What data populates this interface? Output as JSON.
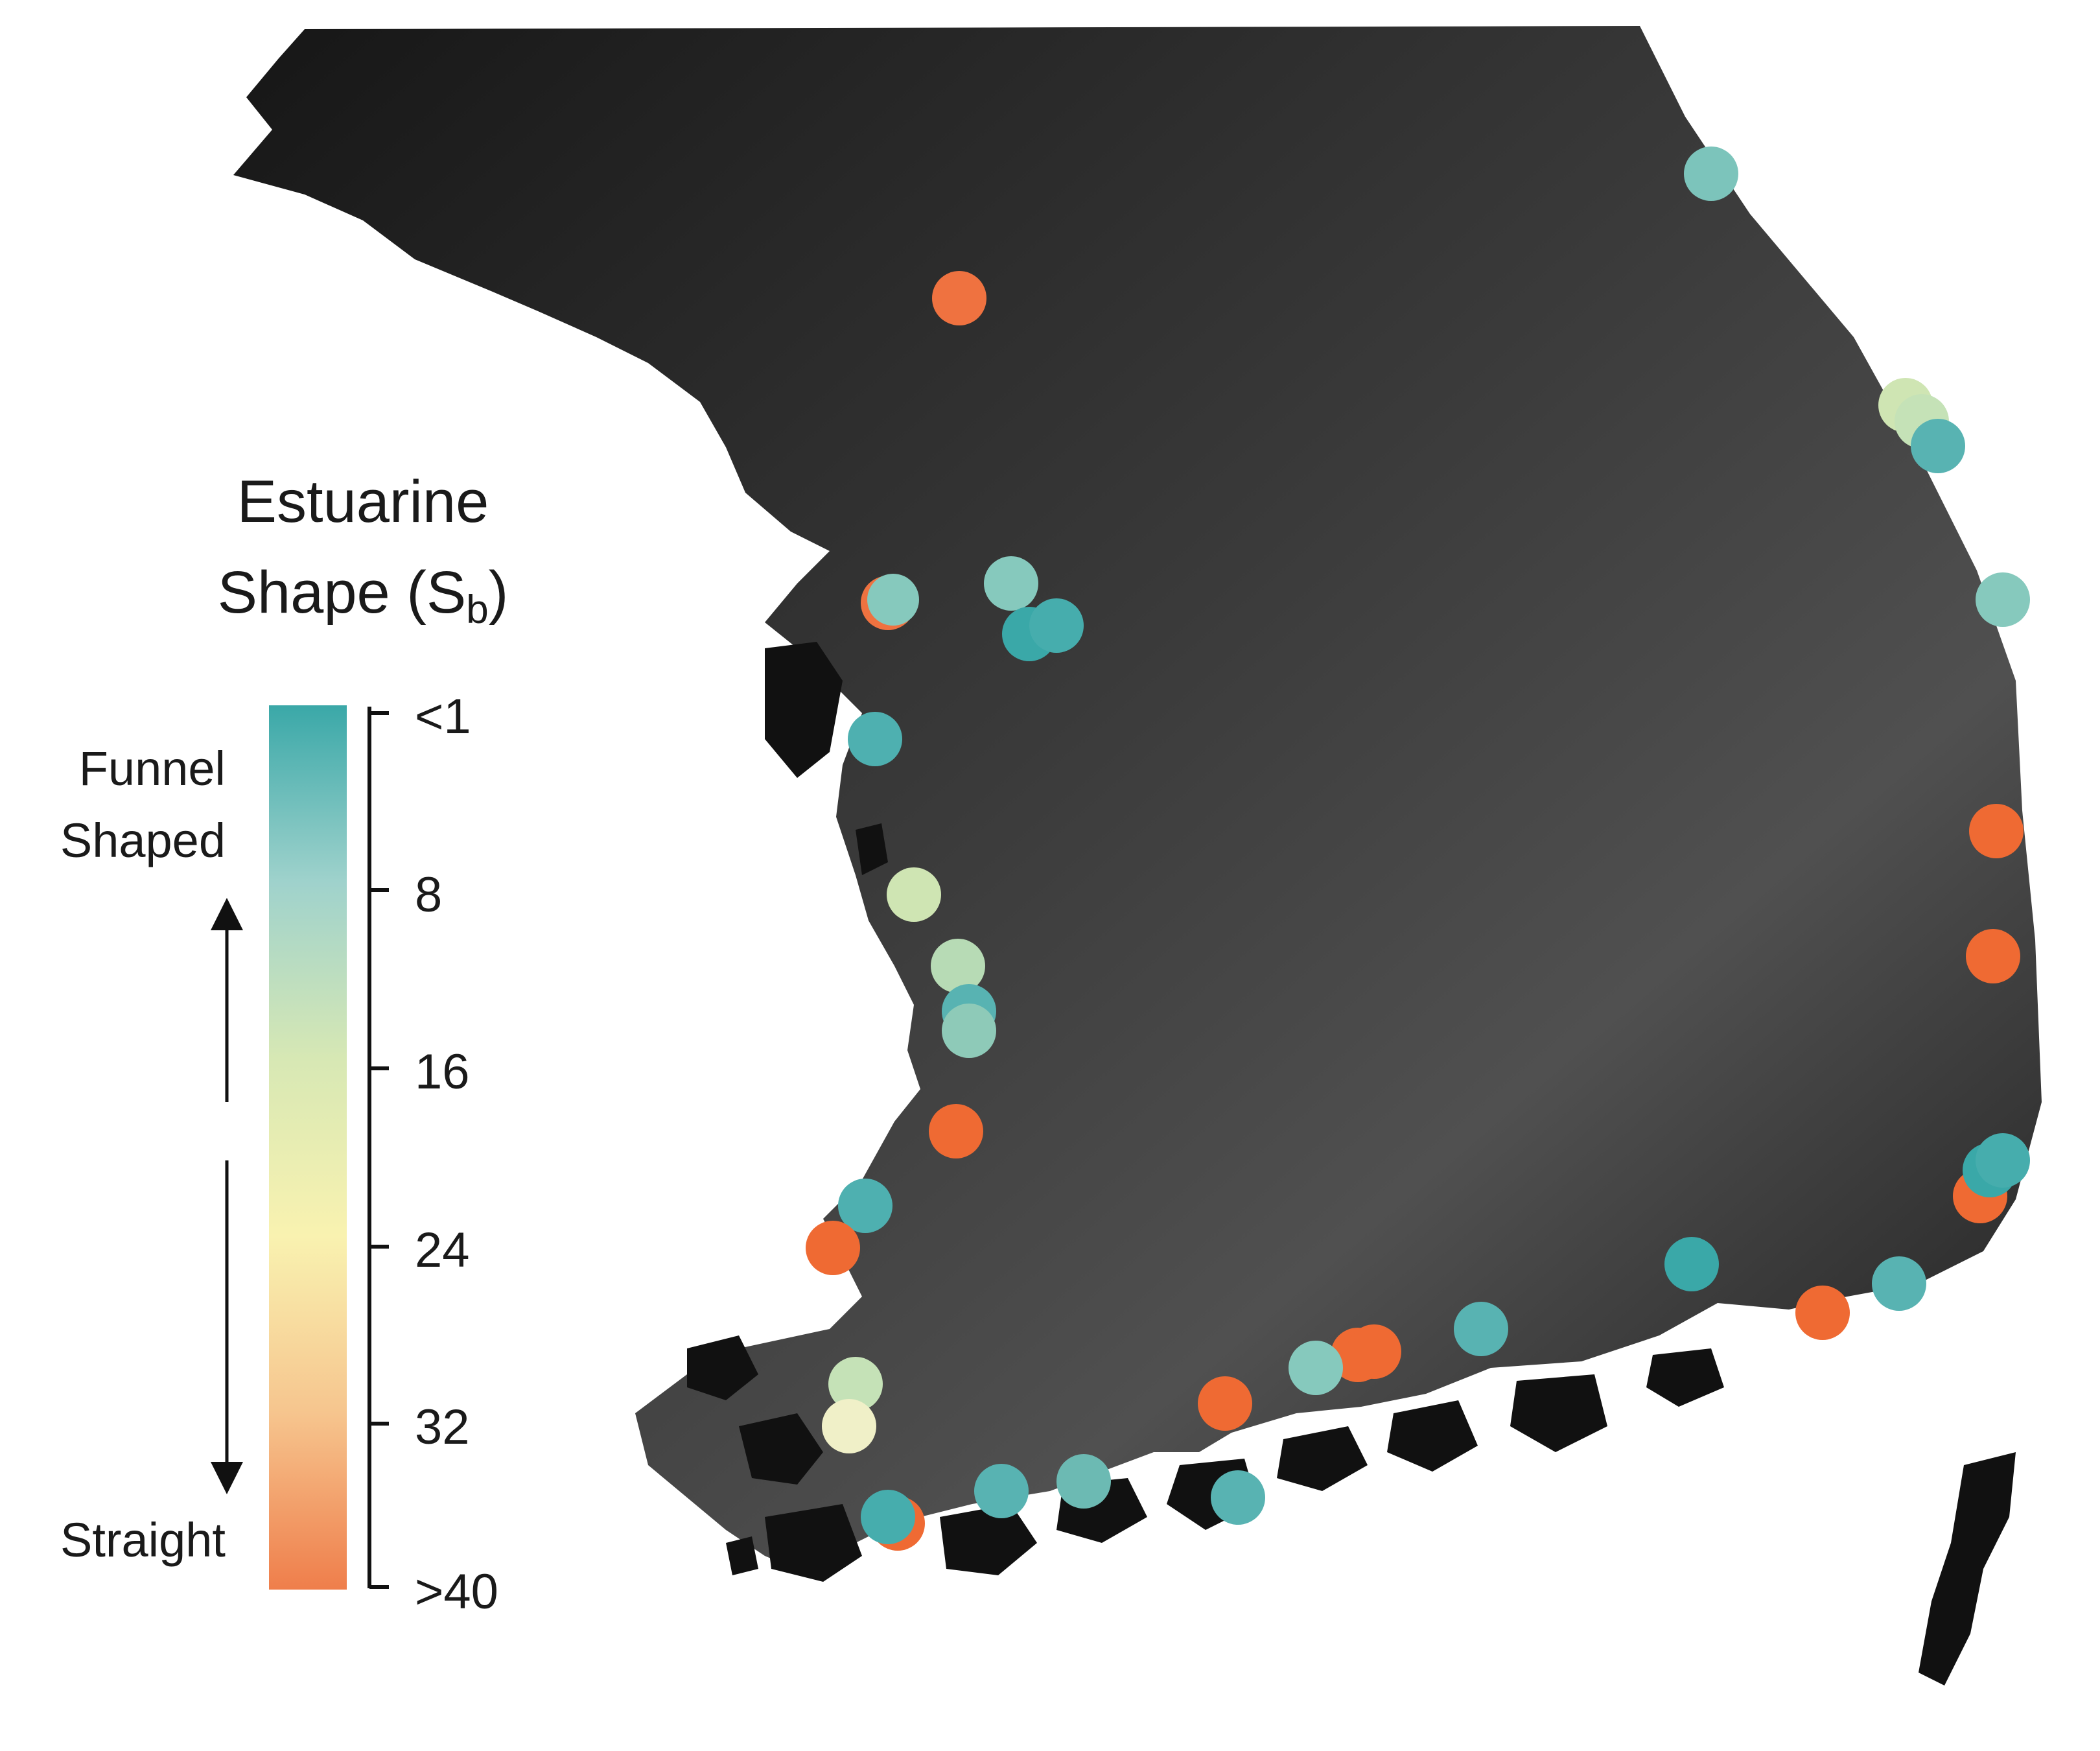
{
  "legend": {
    "title_line1": "Estuarine",
    "title_main": "Shape (S",
    "title_sub": "b",
    "title_close": ")",
    "ticks": [
      "<1",
      "8",
      "16",
      "24",
      "32",
      ">40"
    ],
    "label_top_line1": "Funnel",
    "label_top_line2": "Shaped",
    "label_bottom": "Straight",
    "colors": [
      "#3aa8a8",
      "#9fd2cc",
      "#d7e8b4",
      "#f9f2b0",
      "#f6c58e",
      "#ef7e4b"
    ]
  },
  "estuaries": [
    {
      "shape_class": "funnel"
    },
    {
      "shape_class": "straight"
    },
    {
      "shape_class": "funnel-mid"
    },
    {
      "shape_class": "funnel"
    },
    {
      "shape_class": "funnel"
    },
    {
      "shape_class": "straight"
    }
  ]
}
